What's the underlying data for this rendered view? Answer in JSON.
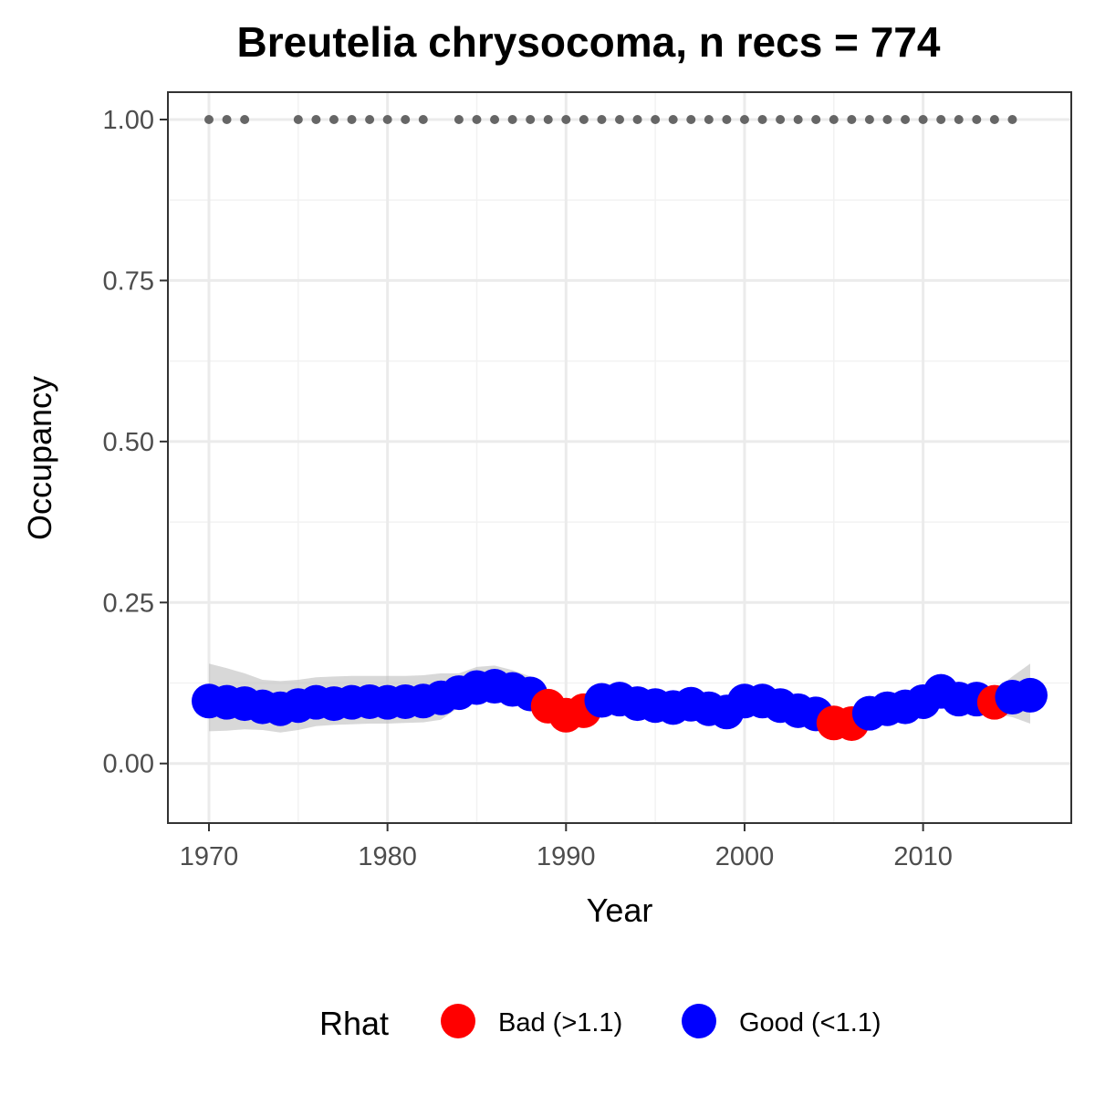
{
  "chart_data": {
    "type": "scatter",
    "title": "Breutelia chrysocoma, n recs = 774",
    "xlabel": "Year",
    "ylabel": "Occupancy",
    "xlim": [
      1967.7,
      2018.3
    ],
    "ylim": [
      -0.0925,
      1.0425
    ],
    "x_ticks": [
      1970,
      1980,
      1990,
      2000,
      2010
    ],
    "x_tick_labels": [
      "1970",
      "1980",
      "1990",
      "2000",
      "2010"
    ],
    "y_ticks": [
      0,
      0.25,
      0.5,
      0.75,
      1.0
    ],
    "y_tick_labels": [
      "0.00",
      "0.25",
      "0.50",
      "0.75",
      "1.00"
    ],
    "grid": true,
    "legend": {
      "title": "Rhat",
      "position": "bottom",
      "entries": [
        {
          "label": "Bad (>1.1)",
          "color": "#ff0000"
        },
        {
          "label": "Good (<1.1)",
          "color": "#0000ff"
        }
      ]
    },
    "colors": {
      "bad": "#ff0000",
      "good": "#0000ff",
      "ribbon": "#bebebe",
      "records": "#666666"
    },
    "series": [
      {
        "x": [
          1970,
          1971,
          1972,
          1973,
          1974,
          1975,
          1976,
          1977,
          1978,
          1979,
          1980,
          1981,
          1982,
          1983,
          1984,
          1985,
          1986,
          1987,
          1988,
          1989,
          1990,
          1991,
          1992,
          1993,
          1994,
          1995,
          1996,
          1997,
          1998,
          1999,
          2000,
          2001,
          2002,
          2003,
          2004,
          2005,
          2006,
          2007,
          2008,
          2009,
          2010,
          2011,
          2012,
          2013,
          2014,
          2015,
          2016
        ],
        "y": [
          0.097,
          0.095,
          0.093,
          0.088,
          0.085,
          0.09,
          0.095,
          0.093,
          0.095,
          0.096,
          0.095,
          0.096,
          0.097,
          0.102,
          0.11,
          0.118,
          0.12,
          0.115,
          0.108,
          0.089,
          0.075,
          0.082,
          0.098,
          0.1,
          0.093,
          0.09,
          0.087,
          0.092,
          0.085,
          0.08,
          0.097,
          0.097,
          0.09,
          0.082,
          0.077,
          0.063,
          0.062,
          0.078,
          0.085,
          0.088,
          0.096,
          0.112,
          0.1,
          0.1,
          0.095,
          0.103,
          0.106
        ],
        "lower": [
          0.05,
          0.051,
          0.053,
          0.052,
          0.048,
          0.052,
          0.058,
          0.06,
          0.061,
          0.062,
          0.062,
          0.063,
          0.064,
          0.068,
          0.087,
          0.1,
          0.103,
          0.095,
          0.088,
          0.078,
          0.069,
          0.072,
          0.085,
          0.085,
          0.08,
          0.076,
          0.073,
          0.077,
          0.071,
          0.068,
          0.084,
          0.085,
          0.078,
          0.07,
          0.063,
          0.052,
          0.053,
          0.064,
          0.07,
          0.073,
          0.08,
          0.094,
          0.086,
          0.083,
          0.077,
          0.072,
          0.062
        ],
        "upper": [
          0.155,
          0.148,
          0.14,
          0.13,
          0.128,
          0.13,
          0.134,
          0.135,
          0.136,
          0.136,
          0.136,
          0.136,
          0.137,
          0.14,
          0.14,
          0.15,
          0.152,
          0.145,
          0.135,
          0.102,
          0.088,
          0.096,
          0.112,
          0.115,
          0.107,
          0.104,
          0.101,
          0.106,
          0.099,
          0.094,
          0.111,
          0.111,
          0.104,
          0.096,
          0.091,
          0.076,
          0.075,
          0.092,
          0.1,
          0.103,
          0.112,
          0.13,
          0.115,
          0.117,
          0.114,
          0.135,
          0.155
        ],
        "rhat": [
          "good",
          "good",
          "good",
          "good",
          "good",
          "good",
          "good",
          "good",
          "good",
          "good",
          "good",
          "good",
          "good",
          "good",
          "good",
          "good",
          "good",
          "good",
          "good",
          "bad",
          "bad",
          "bad",
          "good",
          "good",
          "good",
          "good",
          "good",
          "good",
          "good",
          "good",
          "good",
          "good",
          "good",
          "good",
          "good",
          "bad",
          "bad",
          "good",
          "good",
          "good",
          "good",
          "good",
          "good",
          "good",
          "bad",
          "good",
          "good"
        ]
      }
    ],
    "records": {
      "y": 1.0,
      "x": [
        1970,
        1971,
        1972,
        1975,
        1976,
        1977,
        1978,
        1979,
        1980,
        1981,
        1982,
        1984,
        1985,
        1986,
        1987,
        1988,
        1989,
        1990,
        1991,
        1992,
        1993,
        1994,
        1995,
        1996,
        1997,
        1998,
        1999,
        2000,
        2001,
        2002,
        2003,
        2004,
        2005,
        2006,
        2007,
        2008,
        2009,
        2010,
        2011,
        2012,
        2013,
        2014,
        2015
      ]
    }
  }
}
